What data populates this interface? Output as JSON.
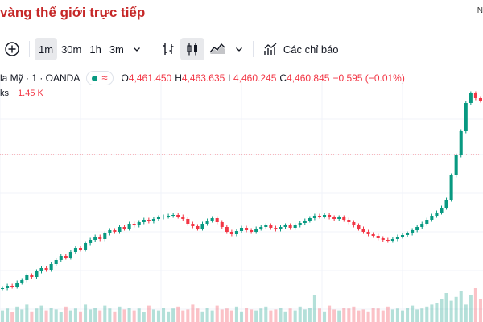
{
  "header": {
    "title": "vàng thế giới trực tiếp",
    "right_text": "N"
  },
  "toolbar": {
    "add_label": "+",
    "intervals": [
      {
        "label": "1m",
        "active": true
      },
      {
        "label": "30m",
        "active": false
      },
      {
        "label": "1h",
        "active": false
      },
      {
        "label": "3m",
        "active": false
      }
    ],
    "indicators_label": "Các chỉ báo"
  },
  "legend": {
    "symbol": "la Mỹ · 1 · OANDA",
    "open_label": "O",
    "open": "4,461.450",
    "high_label": "H",
    "high": "4,463.635",
    "low_label": "L",
    "low": "4,460.245",
    "close_label": "C",
    "close": "4,460.845",
    "change": "−0.595 (−0.01%)",
    "up_color": "#089981",
    "down_color": "#f23645"
  },
  "volume": {
    "label": "ks",
    "value": "1.45 K"
  },
  "chart_data": {
    "type": "candlestick",
    "series": [
      {
        "name": "price",
        "values": [
          10,
          13,
          12,
          17,
          20,
          26,
          24,
          31,
          35,
          33,
          40,
          45,
          50,
          48,
          55,
          60,
          58,
          66,
          70,
          74,
          71,
          78,
          82,
          80,
          86,
          84,
          90,
          88,
          92,
          95,
          93,
          96,
          98,
          99,
          100,
          101,
          99,
          96,
          90,
          87,
          84,
          90,
          94,
          97,
          92,
          86,
          80,
          77,
          81,
          85,
          82,
          80,
          84,
          86,
          88,
          85,
          83,
          86,
          88,
          85,
          88,
          91,
          94,
          97,
          100,
          99,
          101,
          98,
          96,
          98,
          95,
          92,
          88,
          84,
          80,
          77,
          75,
          72,
          70,
          69,
          71,
          74,
          76,
          78,
          82,
          86,
          90,
          95,
          100,
          104,
          110,
          120,
          150,
          175,
          205,
          240,
          252,
          246,
          243
        ]
      }
    ],
    "volume": [
      12,
      14,
      10,
      16,
      13,
      18,
      11,
      14,
      17,
      12,
      15,
      13,
      10,
      16,
      12,
      14,
      11,
      18,
      13,
      15,
      12,
      17,
      14,
      11,
      16,
      13,
      15,
      12,
      14,
      10,
      17,
      13,
      12,
      15,
      11,
      14,
      16,
      12,
      13,
      18,
      14,
      11,
      15,
      12,
      17,
      13,
      14,
      12,
      16,
      11,
      15,
      13,
      12,
      14,
      16,
      12,
      13,
      15,
      11,
      14,
      12,
      16,
      13,
      15,
      28,
      14,
      11,
      17,
      13,
      12,
      15,
      14,
      16,
      12,
      13,
      11,
      15,
      14,
      12,
      16,
      13,
      14,
      12,
      15,
      17,
      13,
      14,
      16,
      18,
      20,
      24,
      30,
      22,
      26,
      32,
      18,
      28,
      35,
      24
    ]
  }
}
